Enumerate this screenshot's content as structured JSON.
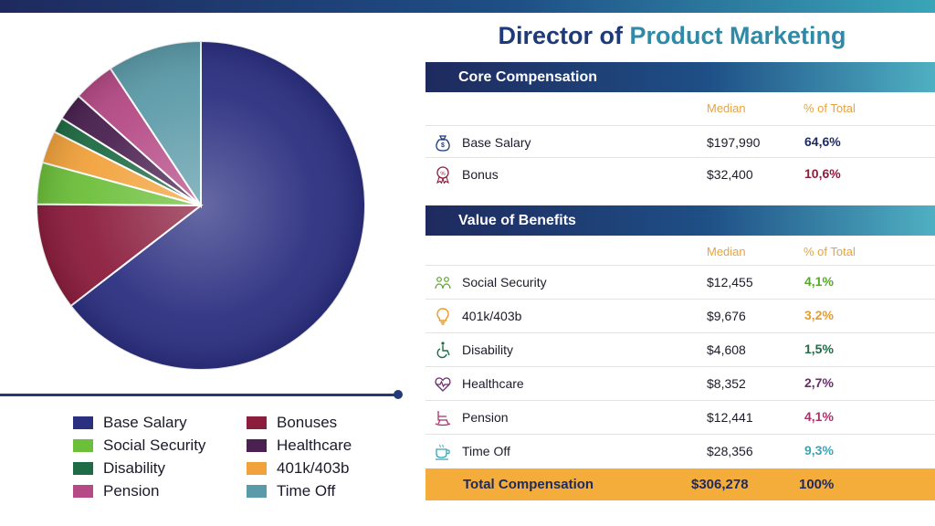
{
  "title_part1": "Director of ",
  "title_part2": "Product Marketing",
  "core": {
    "header": "Core Compensation",
    "col_median": "Median",
    "col_pct": "% of Total",
    "rows": [
      {
        "label": "Base Salary",
        "median": "$197,990",
        "pct": "64,6%",
        "color": "#1e2a5e",
        "icon": "money-bag-icon"
      },
      {
        "label": "Bonus",
        "median": "$32,400",
        "pct": "10,6%",
        "color": "#8b1d3d",
        "icon": "award-badge-icon"
      }
    ]
  },
  "benefits": {
    "header": "Value of Benefits",
    "col_median": "Median",
    "col_pct": "% of Total",
    "rows": [
      {
        "label": "Social Security",
        "median": "$12,455",
        "pct": "4,1%",
        "color": "#5aa52e",
        "icon": "people-icon"
      },
      {
        "label": "401k/403b",
        "median": "$9,676",
        "pct": "3,2%",
        "color": "#e89a2a",
        "icon": "lightbulb-icon"
      },
      {
        "label": "Disability",
        "median": "$4,608",
        "pct": "1,5%",
        "color": "#1f6b45",
        "icon": "wheelchair-icon"
      },
      {
        "label": "Healthcare",
        "median": "$8,352",
        "pct": "2,7%",
        "color": "#6b2d6b",
        "icon": "heartbeat-icon"
      },
      {
        "label": "Pension",
        "median": "$12,441",
        "pct": "4,1%",
        "color": "#a8336b",
        "icon": "rocking-chair-icon"
      },
      {
        "label": "Time Off",
        "median": "$28,356",
        "pct": "9,3%",
        "color": "#3aa5b8",
        "icon": "coffee-cup-icon"
      }
    ]
  },
  "total": {
    "label": "Total Compensation",
    "median": "$306,278",
    "pct": "100%"
  },
  "chart_data": {
    "type": "pie",
    "slices": [
      {
        "name": "Base Salary",
        "value": 64.6,
        "color": "#2b2f80"
      },
      {
        "name": "Bonuses",
        "value": 10.6,
        "color": "#8b1d3d"
      },
      {
        "name": "Social Security",
        "value": 4.1,
        "color": "#6cbf3a"
      },
      {
        "name": "401k/403b",
        "value": 3.2,
        "color": "#f2a23c"
      },
      {
        "name": "Disability",
        "value": 1.5,
        "color": "#1f6b45"
      },
      {
        "name": "Healthcare",
        "value": 2.7,
        "color": "#4a2150"
      },
      {
        "name": "Pension",
        "value": 4.1,
        "color": "#b54a86"
      },
      {
        "name": "Time Off",
        "value": 9.3,
        "color": "#5b9aa8"
      }
    ],
    "legend": [
      {
        "name": "Base Salary",
        "color": "#2b2f80"
      },
      {
        "name": "Bonuses",
        "color": "#8b1d3d"
      },
      {
        "name": "Social Security",
        "color": "#6cbf3a"
      },
      {
        "name": "Healthcare",
        "color": "#4a2150"
      },
      {
        "name": "Disability",
        "color": "#1f6b45"
      },
      {
        "name": "401k/403b",
        "color": "#f2a23c"
      },
      {
        "name": "Pension",
        "color": "#b54a86"
      },
      {
        "name": "Time Off",
        "color": "#5b9aa8"
      }
    ],
    "legend_placement": "bottom"
  }
}
